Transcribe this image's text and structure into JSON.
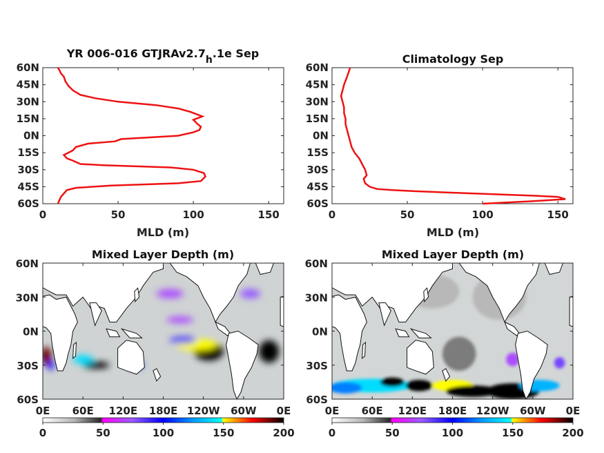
{
  "chart_data": [
    {
      "type": "line",
      "title": "YR 006-016 GTJRAv2.7",
      "title_sub": "h",
      "title_tail": ".1e Sep",
      "xlabel": "MLD (m)",
      "ylabel": "",
      "xlim": [
        0,
        160
      ],
      "ylim": [
        -60,
        60
      ],
      "xticks": [
        "0",
        "50",
        "100",
        "150"
      ],
      "yticks": [
        "60N",
        "45N",
        "30N",
        "15N",
        "0N",
        "15S",
        "30S",
        "45S",
        "60S"
      ],
      "color": "#ee1111",
      "series": [
        {
          "x": [
            10,
            11,
            12,
            14,
            16,
            22,
            45,
            90,
            105,
            108,
            107,
            100,
            85,
            40,
            25,
            20,
            16,
            14,
            17,
            20,
            22,
            30,
            48,
            52,
            90,
            100,
            104,
            105,
            103,
            100,
            106,
            102,
            98,
            90,
            75,
            50,
            35,
            25,
            20,
            17,
            15,
            14,
            12,
            11,
            10
          ],
          "y": [
            -60,
            -57,
            -54,
            -51,
            -48,
            -46,
            -44,
            -42,
            -40,
            -36,
            -33,
            -30,
            -28,
            -26,
            -25,
            -22,
            -20,
            -17,
            -15,
            -13,
            -10,
            -7,
            -5,
            -3,
            0,
            3,
            5,
            8,
            10,
            14,
            17,
            19,
            21,
            24,
            27,
            30,
            33,
            36,
            40,
            44,
            48,
            52,
            55,
            58,
            60
          ]
        }
      ]
    },
    {
      "type": "line",
      "title": "Climatology Sep",
      "xlabel": "MLD (m)",
      "ylabel": "",
      "xlim": [
        0,
        160
      ],
      "ylim": [
        -60,
        60
      ],
      "xticks": [
        "0",
        "50",
        "100",
        "150"
      ],
      "yticks": [
        "60N",
        "45N",
        "30N",
        "15N",
        "0N",
        "15S",
        "30S",
        "45S",
        "60S"
      ],
      "color": "#ee1111",
      "series": [
        {
          "x": [
            100,
            130,
            155,
            150,
            135,
            115,
            95,
            75,
            55,
            40,
            30,
            25,
            22,
            21,
            23,
            22,
            20,
            18,
            15,
            13,
            12,
            11,
            10,
            9,
            9,
            8,
            8,
            7,
            6,
            7,
            8,
            10,
            12
          ],
          "y": [
            -60,
            -58,
            -56,
            -54,
            -53,
            -52,
            -51,
            -50,
            -49,
            -48,
            -47,
            -45,
            -42,
            -38,
            -35,
            -30,
            -25,
            -20,
            -15,
            -10,
            -5,
            0,
            5,
            10,
            15,
            20,
            25,
            30,
            35,
            40,
            45,
            52,
            60
          ]
        }
      ]
    },
    {
      "type": "heatmap",
      "title": "Mixed Layer Depth (m)",
      "xticks": [
        "0E",
        "60E",
        "120E",
        "180E",
        "120W",
        "60W",
        "0E"
      ],
      "yticks": [
        "60N",
        "30N",
        "0N",
        "30S",
        "60S"
      ],
      "xlim": [
        0,
        360
      ],
      "ylim": [
        -60,
        60
      ],
      "colorbar": {
        "ticks": [
          "0",
          "50",
          "100",
          "150",
          "200"
        ],
        "range": [
          0,
          200
        ]
      },
      "blobs": [
        {
          "lon": 80,
          "lat": -30,
          "w": 20,
          "h": 3,
          "v": 200
        },
        {
          "lon": 60,
          "lat": -25,
          "w": 15,
          "h": 4,
          "v": 140
        },
        {
          "lon": 140,
          "lat": -30,
          "w": 10,
          "h": 3,
          "v": 110
        },
        {
          "lon": 248,
          "lat": -18,
          "w": 22,
          "h": 8,
          "v": 200
        },
        {
          "lon": 230,
          "lat": -12,
          "w": 30,
          "h": 5,
          "v": 150
        },
        {
          "lon": 210,
          "lat": -8,
          "w": 20,
          "h": 3,
          "v": 90
        },
        {
          "lon": 338,
          "lat": -18,
          "w": 15,
          "h": 10,
          "v": 200
        },
        {
          "lon": 5,
          "lat": -22,
          "w": 8,
          "h": 8,
          "v": 190
        },
        {
          "lon": 190,
          "lat": 33,
          "w": 20,
          "h": 4,
          "v": 70
        },
        {
          "lon": 205,
          "lat": 10,
          "w": 20,
          "h": 3,
          "v": 70
        },
        {
          "lon": 310,
          "lat": 33,
          "w": 15,
          "h": 4,
          "v": 75
        },
        {
          "lon": 12,
          "lat": -30,
          "w": 5,
          "h": 4,
          "v": 100
        }
      ]
    },
    {
      "type": "heatmap",
      "title": "Mixed Layer Depth (m)",
      "xticks": [
        "0E",
        "60E",
        "120E",
        "180E",
        "120W",
        "60W",
        "0E"
      ],
      "yticks": [
        "60N",
        "30N",
        "0N",
        "30S",
        "60S"
      ],
      "xlim": [
        0,
        360
      ],
      "ylim": [
        -60,
        60
      ],
      "colorbar": {
        "ticks": [
          "0",
          "50",
          "100",
          "150",
          "200"
        ],
        "range": [
          0,
          200
        ]
      },
      "blobs": [
        {
          "lon": 60,
          "lat": -48,
          "w": 60,
          "h": 6,
          "v": 140
        },
        {
          "lon": 90,
          "lat": -45,
          "w": 18,
          "h": 4,
          "v": 200
        },
        {
          "lon": 130,
          "lat": -48,
          "w": 20,
          "h": 5,
          "v": 200
        },
        {
          "lon": 180,
          "lat": -48,
          "w": 30,
          "h": 5,
          "v": 150
        },
        {
          "lon": 210,
          "lat": -53,
          "w": 40,
          "h": 5,
          "v": 200
        },
        {
          "lon": 270,
          "lat": -53,
          "w": 40,
          "h": 7,
          "v": 200
        },
        {
          "lon": 310,
          "lat": -48,
          "w": 30,
          "h": 5,
          "v": 130
        },
        {
          "lon": 20,
          "lat": -50,
          "w": 25,
          "h": 5,
          "v": 120
        },
        {
          "lon": 340,
          "lat": -28,
          "w": 8,
          "h": 5,
          "v": 80
        },
        {
          "lon": 270,
          "lat": -25,
          "w": 10,
          "h": 6,
          "v": 70
        },
        {
          "lon": 190,
          "lat": -20,
          "w": 25,
          "h": 15,
          "v": 35
        },
        {
          "lon": 250,
          "lat": 30,
          "w": 40,
          "h": 20,
          "v": 25
        },
        {
          "lon": 150,
          "lat": 35,
          "w": 40,
          "h": 15,
          "v": 25
        }
      ]
    }
  ]
}
